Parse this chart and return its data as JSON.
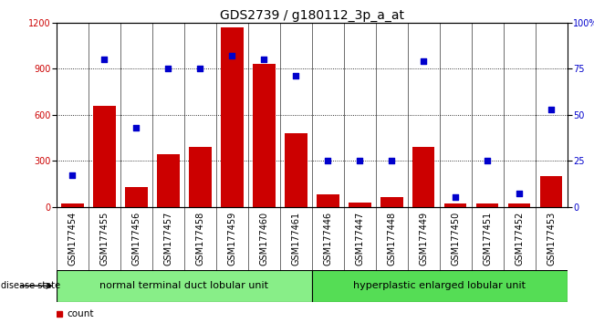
{
  "title": "GDS2739 / g180112_3p_a_at",
  "samples": [
    "GSM177454",
    "GSM177455",
    "GSM177456",
    "GSM177457",
    "GSM177458",
    "GSM177459",
    "GSM177460",
    "GSM177461",
    "GSM177446",
    "GSM177447",
    "GSM177448",
    "GSM177449",
    "GSM177450",
    "GSM177451",
    "GSM177452",
    "GSM177453"
  ],
  "counts": [
    20,
    660,
    130,
    340,
    390,
    1170,
    930,
    480,
    80,
    30,
    60,
    390,
    20,
    20,
    20,
    200
  ],
  "percentiles": [
    17,
    80,
    43,
    75,
    75,
    82,
    80,
    71,
    25,
    25,
    25,
    79,
    5,
    25,
    7,
    53
  ],
  "group1_label": "normal terminal duct lobular unit",
  "group2_label": "hyperplastic enlarged lobular unit",
  "group1_count": 8,
  "group2_count": 8,
  "bar_color": "#cc0000",
  "dot_color": "#0000cc",
  "ylim_left": [
    0,
    1200
  ],
  "ylim_right": [
    0,
    100
  ],
  "yticks_left": [
    0,
    300,
    600,
    900,
    1200
  ],
  "yticks_right": [
    0,
    25,
    50,
    75,
    100
  ],
  "yticklabels_right": [
    "0",
    "25",
    "50",
    "75",
    "100%"
  ],
  "bg_gray": "#c8c8c8",
  "bg_group1": "#88ee88",
  "bg_group2": "#55dd55",
  "title_fontsize": 10,
  "tick_fontsize": 7,
  "group_label_fontsize": 8,
  "legend_fontsize": 7.5
}
